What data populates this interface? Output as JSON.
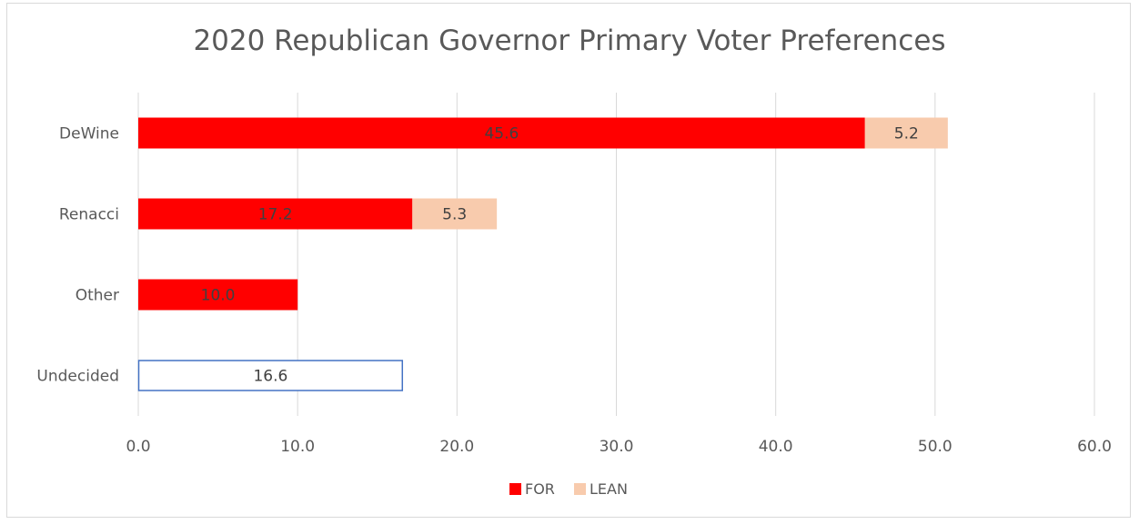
{
  "chart_data": {
    "type": "bar",
    "orientation": "horizontal",
    "stacked": true,
    "title": "2020 Republican Governor Primary Voter Preferences",
    "xlabel": "",
    "ylabel": "",
    "categories": [
      "DeWine",
      "Renacci",
      "Other",
      "Undecided"
    ],
    "xlim": [
      0,
      60
    ],
    "x_ticks": [
      "0.0",
      "10.0",
      "20.0",
      "30.0",
      "40.0",
      "50.0",
      "60.0"
    ],
    "grid": "vertical",
    "series": [
      {
        "name": "FOR",
        "color": "#ff0000",
        "values": [
          45.6,
          17.2,
          10.0,
          null
        ],
        "labels": [
          "45.6",
          "17.2",
          "10.0",
          ""
        ]
      },
      {
        "name": "LEAN",
        "color": "#f8cbad",
        "values": [
          5.2,
          5.3,
          null,
          null
        ],
        "labels": [
          "5.2",
          "5.3",
          "",
          ""
        ]
      }
    ],
    "extra_bars": [
      {
        "category": "Undecided",
        "value": 16.6,
        "label": "16.6",
        "fill": "#ffffff",
        "stroke": "#4472c4"
      }
    ],
    "legend": {
      "position": "bottom",
      "entries": [
        "FOR",
        "LEAN"
      ]
    }
  }
}
